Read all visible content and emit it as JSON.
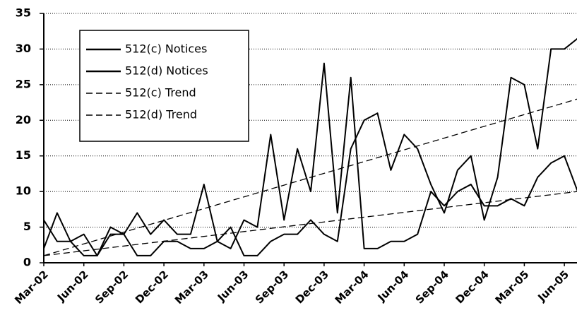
{
  "chart_data": {
    "type": "line",
    "categories": [
      "Mar-02",
      null,
      null,
      "Jun-02",
      null,
      null,
      "Sep-02",
      null,
      null,
      "Dec-02",
      null,
      null,
      "Mar-03",
      null,
      null,
      "Jun-03",
      null,
      null,
      "Sep-03",
      null,
      null,
      "Dec-03",
      null,
      null,
      "Mar-04",
      null,
      null,
      "Jun-04",
      null,
      null,
      "Sep-04",
      null,
      null,
      "Dec-04",
      null,
      null,
      "Mar-05",
      null,
      null,
      "Jun-05",
      null
    ],
    "series": [
      {
        "name": "512(c) Notices",
        "color": "#000000",
        "style": "solid",
        "values": [
          2,
          7,
          3,
          1,
          1,
          4,
          4,
          1,
          1,
          3,
          3,
          2,
          2,
          3,
          5,
          1,
          1,
          3,
          4,
          4,
          6,
          4,
          3,
          16,
          20,
          21,
          13,
          18,
          16,
          11,
          7,
          13,
          15,
          6,
          12,
          26,
          25,
          16,
          30,
          30,
          31.5
        ]
      },
      {
        "name": "512(d) Notices",
        "color": "#000000",
        "style": "solid",
        "values": [
          6,
          3,
          3,
          4,
          1,
          5,
          4,
          7,
          4,
          6,
          4,
          4,
          11,
          3,
          2,
          6,
          5,
          18,
          6,
          16,
          10,
          28,
          7,
          26,
          2,
          2,
          3,
          3,
          4,
          10,
          8,
          10,
          11,
          8,
          8,
          9,
          8,
          12,
          14,
          15,
          10
        ]
      },
      {
        "name": "512(c) Trend",
        "color": "#000000",
        "style": "dashed",
        "values": [
          1,
          1.55,
          2.1,
          2.65,
          3.2,
          3.75,
          4.3,
          4.85,
          5.4,
          5.95,
          6.5,
          7.05,
          7.6,
          8.15,
          8.7,
          9.25,
          9.8,
          10.35,
          10.9,
          11.45,
          12,
          12.55,
          13.1,
          13.65,
          14.2,
          14.75,
          15.3,
          15.85,
          16.4,
          16.95,
          17.5,
          18.05,
          18.6,
          19.15,
          19.7,
          20.25,
          20.8,
          21.35,
          21.9,
          22.45,
          23
        ]
      },
      {
        "name": "512(d) Trend",
        "color": "#000000",
        "style": "dashed",
        "values": [
          1,
          1.23,
          1.45,
          1.68,
          1.9,
          2.13,
          2.35,
          2.58,
          2.8,
          3.03,
          3.25,
          3.48,
          3.7,
          3.93,
          4.15,
          4.38,
          4.6,
          4.83,
          5.05,
          5.28,
          5.5,
          5.73,
          5.95,
          6.18,
          6.4,
          6.63,
          6.85,
          7.08,
          7.3,
          7.53,
          7.75,
          7.98,
          8.2,
          8.43,
          8.65,
          8.88,
          9.1,
          9.33,
          9.55,
          9.78,
          10
        ]
      }
    ],
    "ylim": [
      0,
      35
    ],
    "yticks": [
      0,
      5,
      10,
      15,
      20,
      25,
      30,
      35
    ],
    "grid": true,
    "legend": "upper left"
  }
}
